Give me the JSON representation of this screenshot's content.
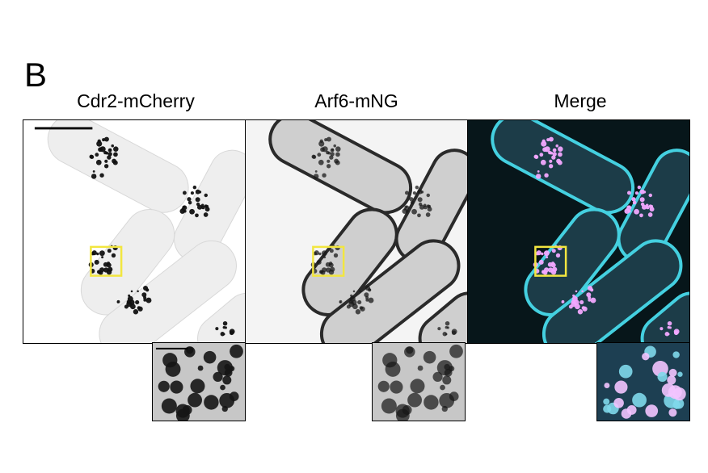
{
  "figure": {
    "panel_letter": "B",
    "columns": [
      {
        "title": "Cdr2-mCherry",
        "channel": "cdr2",
        "background": "#ffffff",
        "cell_fill": "#eeeeee",
        "cell_edge": "#d8d8d8",
        "dot_color": "#111111"
      },
      {
        "title": "Arf6-mNG",
        "channel": "arf6",
        "background": "#f4f4f4",
        "cell_fill": "#cfcfcf",
        "cell_edge": "#2a2a2a",
        "dot_color": "#1a1a1a"
      },
      {
        "title": "Merge",
        "channel": "merge",
        "background": "#07161a",
        "cell_fill": "#1c3c48",
        "cell_edge": "#44d0e0",
        "dot_color": "#f2a8ff"
      }
    ],
    "roi_box_color": "#f2e640",
    "scale_bar_color": "#000000"
  }
}
